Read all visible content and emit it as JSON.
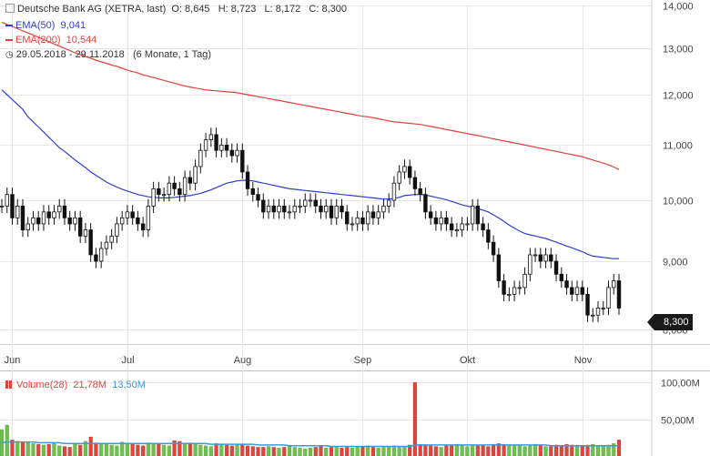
{
  "header": {
    "title": "Deutsche Bank AG (XETRA, last)",
    "ohlc": "O: 8,645   H: 8,723   L: 8,172   C: 8,300",
    "ema50_label": "EMA(50)",
    "ema50_value": "9,041",
    "ema200_label": "EMA(200)",
    "ema200_value": "10,544",
    "period": "29.05.2018 - 29.11.2018",
    "period_note": "(6 Monate, 1 Tag)"
  },
  "volume_legend": {
    "label": "Volume(28)",
    "value": "21,78M",
    "avg": "13,50M"
  },
  "last_price_tag": "8,300",
  "colors": {
    "ema50": "#2c3fcc",
    "ema200": "#e0443a",
    "candle": "#111111",
    "vol_up": "#6cc24a",
    "vol_down": "#e0443a",
    "vol_avg": "#3b9bd6",
    "grid": "#e6e6e6"
  },
  "chart_data": {
    "type": "candlestick",
    "price_axis": {
      "ylim": [
        7.8,
        14.0
      ],
      "ticks": [
        {
          "v": 8.0,
          "label": "8,000"
        },
        {
          "v": 9.0,
          "label": "9,000"
        },
        {
          "v": 10.0,
          "label": "10,000"
        },
        {
          "v": 11.0,
          "label": "11,000"
        },
        {
          "v": 12.0,
          "label": "12,000"
        },
        {
          "v": 13.0,
          "label": "13,000"
        },
        {
          "v": 14.0,
          "label": "14,000"
        }
      ],
      "scale": "log"
    },
    "x_labels": [
      {
        "i": 2,
        "label": "Jun"
      },
      {
        "i": 24,
        "label": "Jul"
      },
      {
        "i": 46,
        "label": "Aug"
      },
      {
        "i": 69,
        "label": "Sep"
      },
      {
        "i": 89,
        "label": "Okt"
      },
      {
        "i": 111,
        "label": "Nov"
      }
    ],
    "closes": [
      9.9,
      10.1,
      9.7,
      9.9,
      9.5,
      9.6,
      9.7,
      9.6,
      9.8,
      9.7,
      9.8,
      9.9,
      9.7,
      9.6,
      9.7,
      9.4,
      9.5,
      9.1,
      9.0,
      9.2,
      9.3,
      9.4,
      9.6,
      9.7,
      9.8,
      9.7,
      9.6,
      9.5,
      9.9,
      10.2,
      10.1,
      10.1,
      10.3,
      10.2,
      10.1,
      10.4,
      10.3,
      10.6,
      10.9,
      11.1,
      11.2,
      10.9,
      11.0,
      10.9,
      10.8,
      10.9,
      10.5,
      10.2,
      10.1,
      10.0,
      9.8,
      9.9,
      9.8,
      9.9,
      9.8,
      9.8,
      9.9,
      9.9,
      10.0,
      10.0,
      9.9,
      9.8,
      9.9,
      9.7,
      9.9,
      9.8,
      9.6,
      9.6,
      9.7,
      9.6,
      9.8,
      9.7,
      9.8,
      9.9,
      10.0,
      10.3,
      10.5,
      10.6,
      10.4,
      10.2,
      10.1,
      9.8,
      9.7,
      9.6,
      9.7,
      9.6,
      9.5,
      9.5,
      9.6,
      9.6,
      9.9,
      9.6,
      9.5,
      9.3,
      9.1,
      8.7,
      8.5,
      8.5,
      8.6,
      8.6,
      8.8,
      9.1,
      9.1,
      9.0,
      9.1,
      9.0,
      8.8,
      8.7,
      8.6,
      8.5,
      8.6,
      8.5,
      8.2,
      8.2,
      8.3,
      8.3,
      8.6,
      8.7,
      8.3
    ],
    "ema50": [
      12.1,
      12.0,
      11.9,
      11.8,
      11.7,
      11.55,
      11.45,
      11.35,
      11.25,
      11.15,
      11.05,
      10.95,
      10.88,
      10.8,
      10.72,
      10.65,
      10.58,
      10.5,
      10.44,
      10.38,
      10.32,
      10.27,
      10.23,
      10.19,
      10.16,
      10.13,
      10.1,
      10.08,
      10.06,
      10.05,
      10.04,
      10.04,
      10.04,
      10.05,
      10.06,
      10.07,
      10.08,
      10.1,
      10.12,
      10.15,
      10.18,
      10.22,
      10.26,
      10.3,
      10.32,
      10.34,
      10.35,
      10.35,
      10.34,
      10.32,
      10.3,
      10.28,
      10.26,
      10.24,
      10.22,
      10.2,
      10.19,
      10.18,
      10.17,
      10.16,
      10.15,
      10.14,
      10.13,
      10.12,
      10.11,
      10.1,
      10.09,
      10.08,
      10.07,
      10.06,
      10.05,
      10.04,
      10.03,
      10.02,
      10.02,
      10.03,
      10.05,
      10.08,
      10.09,
      10.1,
      10.1,
      10.09,
      10.07,
      10.05,
      10.03,
      10.01,
      9.98,
      9.95,
      9.92,
      9.9,
      9.88,
      9.86,
      9.83,
      9.8,
      9.75,
      9.7,
      9.64,
      9.58,
      9.53,
      9.48,
      9.44,
      9.42,
      9.4,
      9.38,
      9.36,
      9.33,
      9.3,
      9.27,
      9.24,
      9.21,
      9.18,
      9.15,
      9.11,
      9.08,
      9.07,
      9.06,
      9.05,
      9.04,
      9.041
    ],
    "ema200": [
      13.6,
      13.55,
      13.5,
      13.45,
      13.4,
      13.35,
      13.3,
      13.25,
      13.2,
      13.15,
      13.1,
      13.05,
      13.0,
      12.95,
      12.9,
      12.86,
      12.82,
      12.78,
      12.74,
      12.7,
      12.67,
      12.63,
      12.6,
      12.56,
      12.52,
      12.49,
      12.46,
      12.42,
      12.39,
      12.36,
      12.33,
      12.3,
      12.27,
      12.24,
      12.21,
      12.18,
      12.16,
      12.14,
      12.12,
      12.1,
      12.09,
      12.08,
      12.07,
      12.06,
      12.05,
      12.04,
      12.02,
      12.0,
      11.98,
      11.96,
      11.94,
      11.92,
      11.9,
      11.88,
      11.86,
      11.84,
      11.82,
      11.8,
      11.78,
      11.76,
      11.74,
      11.72,
      11.7,
      11.68,
      11.66,
      11.64,
      11.62,
      11.6,
      11.58,
      11.56,
      11.55,
      11.53,
      11.51,
      11.49,
      11.47,
      11.45,
      11.44,
      11.43,
      11.42,
      11.41,
      11.4,
      11.38,
      11.36,
      11.34,
      11.32,
      11.3,
      11.28,
      11.26,
      11.24,
      11.22,
      11.2,
      11.18,
      11.16,
      11.14,
      11.12,
      11.1,
      11.08,
      11.06,
      11.04,
      11.02,
      11.0,
      10.98,
      10.96,
      10.94,
      10.92,
      10.9,
      10.88,
      10.86,
      10.84,
      10.82,
      10.8,
      10.78,
      10.75,
      10.72,
      10.69,
      10.66,
      10.63,
      10.59,
      10.544
    ],
    "volume_axis": {
      "ylim": [
        0,
        110
      ],
      "ticks": [
        {
          "v": 50,
          "label": "50,00M"
        },
        {
          "v": 100,
          "label": "100,00M"
        }
      ]
    },
    "volumes": [
      36,
      42,
      22,
      20,
      19,
      18,
      17,
      16,
      15,
      16,
      18,
      14,
      13,
      12,
      16,
      15,
      20,
      26,
      18,
      17,
      16,
      15,
      14,
      19,
      17,
      16,
      15,
      14,
      18,
      17,
      16,
      15,
      14,
      21,
      20,
      17,
      18,
      16,
      15,
      14,
      13,
      17,
      16,
      15,
      14,
      15,
      16,
      14,
      13,
      12,
      12,
      13,
      12,
      11,
      12,
      13,
      12,
      11,
      10,
      11,
      12,
      13,
      11,
      12,
      12,
      11,
      12,
      11,
      12,
      13,
      14,
      12,
      11,
      12,
      13,
      14,
      13,
      12,
      15,
      100,
      16,
      15,
      14,
      13,
      12,
      14,
      15,
      16,
      14,
      13,
      15,
      14,
      15,
      13,
      16,
      17,
      16,
      15,
      14,
      15,
      13,
      14,
      16,
      15,
      13,
      14,
      15,
      14,
      16,
      15,
      14,
      13,
      15,
      16,
      14,
      13,
      15,
      17,
      22
    ],
    "volume_avg": [
      18,
      19,
      19,
      19,
      19,
      19,
      19,
      18,
      18,
      18,
      18,
      18,
      17,
      17,
      17,
      17,
      17,
      17,
      17,
      17,
      17,
      17,
      17,
      17,
      17,
      17,
      17,
      17,
      17,
      17,
      17,
      17,
      17,
      17,
      17,
      17,
      17,
      17,
      17,
      17,
      16,
      16,
      16,
      16,
      16,
      16,
      16,
      16,
      16,
      15,
      15,
      15,
      15,
      15,
      15,
      14,
      14,
      14,
      14,
      14,
      14,
      14,
      14,
      13,
      13,
      13,
      13,
      13,
      13,
      13,
      13,
      13,
      13,
      13,
      13,
      13,
      13,
      13,
      13,
      15,
      15,
      15,
      15,
      15,
      15,
      15,
      15,
      15,
      15,
      15,
      15,
      15,
      15,
      15,
      15,
      15,
      15,
      15,
      15,
      15,
      15,
      15,
      15,
      15,
      15,
      14,
      14,
      14,
      14,
      14,
      14,
      14,
      14,
      14,
      14,
      14,
      14,
      14,
      14
    ]
  }
}
